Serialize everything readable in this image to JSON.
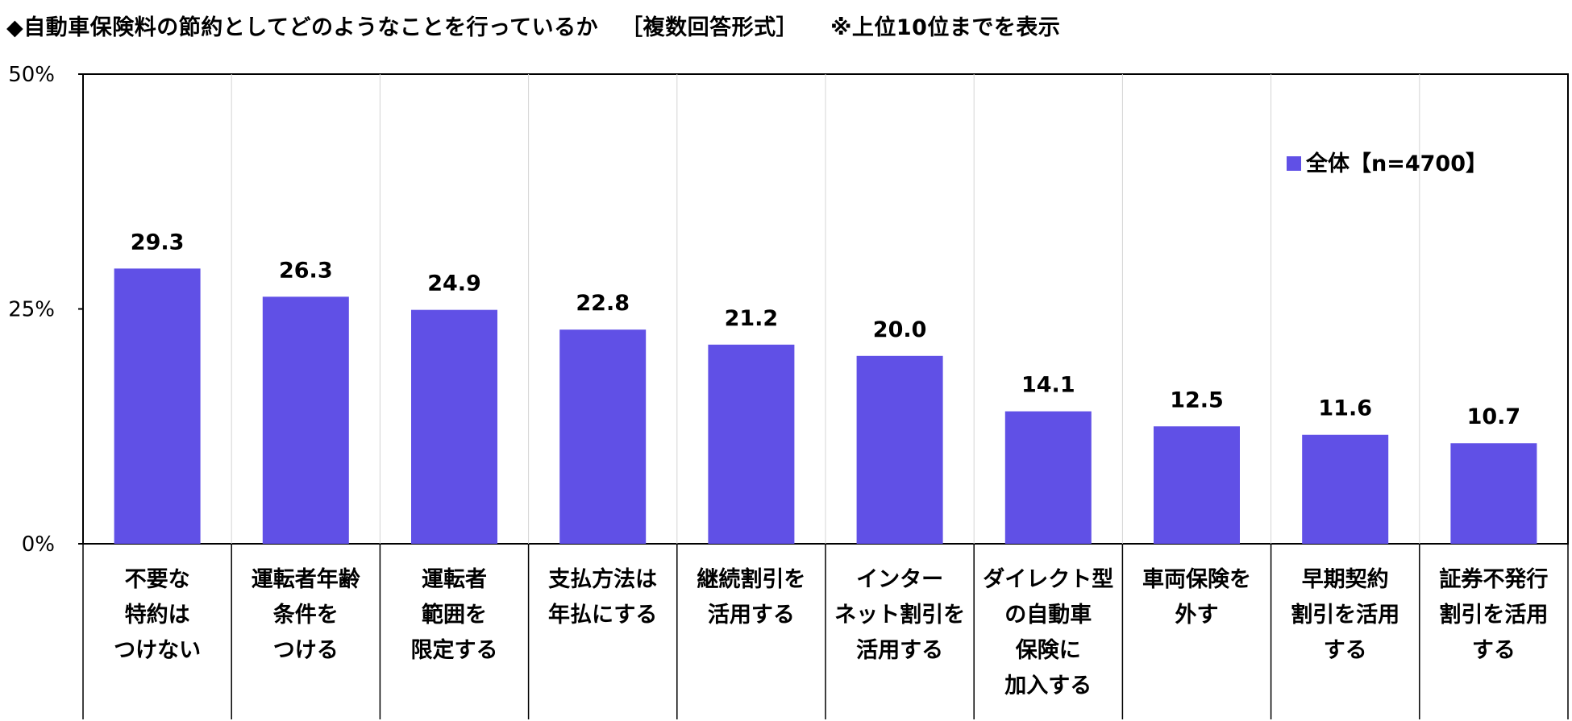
{
  "title": {
    "main": "◆自動車保険料の節約としてどのようなことを行っているか",
    "format": "［複数回答形式］",
    "note": "※上位10位までを表示"
  },
  "chart_data": {
    "type": "bar",
    "title": "◆自動車保険料の節約としてどのようなことを行っているか",
    "categories": [
      [
        "不要な",
        "特約は",
        "つけない"
      ],
      [
        "運転者年齢",
        "条件を",
        "つける"
      ],
      [
        "運転者",
        "範囲を",
        "限定する"
      ],
      [
        "支払方法は",
        "年払にする"
      ],
      [
        "継続割引を",
        "活用する"
      ],
      [
        "インター",
        "ネット割引を",
        "活用する"
      ],
      [
        "ダイレクト型",
        "の自動車",
        "保険に",
        "加入する"
      ],
      [
        "車両保険を",
        "外す"
      ],
      [
        "早期契約",
        "割引を活用",
        "する"
      ],
      [
        "証券不発行",
        "割引を活用",
        "する"
      ]
    ],
    "series": [
      {
        "name": "全体【n=4700】",
        "values": [
          29.3,
          26.3,
          24.9,
          22.8,
          21.2,
          20.0,
          14.1,
          12.5,
          11.6,
          10.7
        ],
        "color": "#6050e6"
      }
    ],
    "value_labels": [
      "29.3",
      "26.3",
      "24.9",
      "22.8",
      "21.2",
      "20.0",
      "14.1",
      "12.5",
      "11.6",
      "10.7"
    ],
    "ylim": [
      0,
      50
    ],
    "yticks": [
      0,
      25,
      50
    ],
    "ytick_labels": [
      "0%",
      "25%",
      "50%"
    ],
    "xlabel": "",
    "ylabel": "",
    "grid": "vertical separators",
    "legend_position": "top-right"
  }
}
